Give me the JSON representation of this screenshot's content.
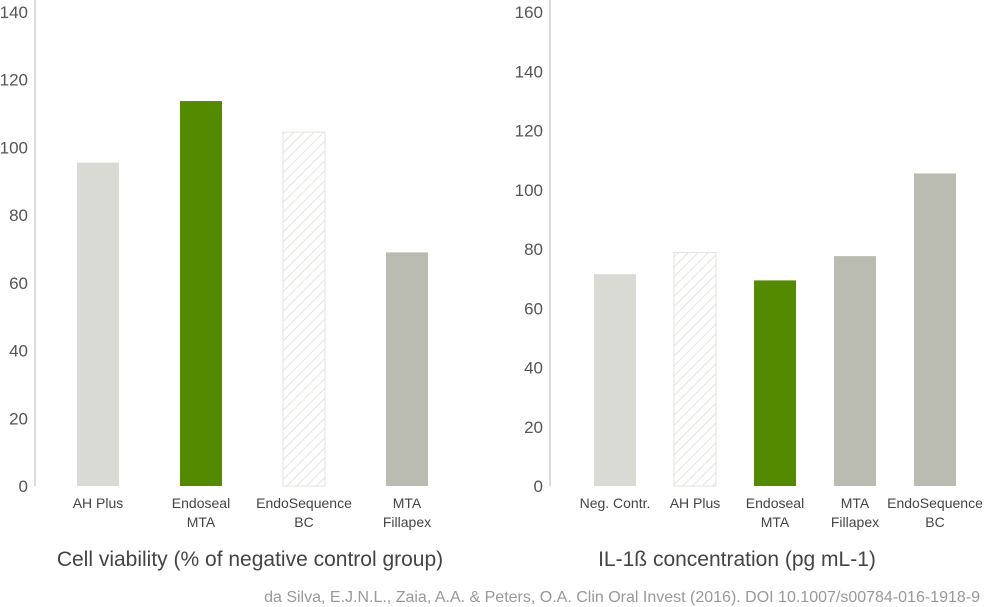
{
  "chart_data": [
    {
      "type": "bar",
      "title": "Cell viability (% of negative control group)",
      "categories": [
        [
          "AH Plus"
        ],
        [
          "Endoseal",
          "MTA"
        ],
        [
          "EndoSequence",
          "BC"
        ],
        [
          "MTA",
          "Fillapex"
        ]
      ],
      "values": [
        95.5,
        113.7,
        104.5,
        69
      ],
      "styles": [
        "light",
        "green",
        "hatched",
        "gray"
      ],
      "ylim": [
        0,
        140
      ],
      "yticks": [
        0,
        20,
        40,
        60,
        80,
        100,
        120,
        140
      ],
      "xlabel": "",
      "ylabel": "",
      "grid": false
    },
    {
      "type": "bar",
      "title": "IL-1ß concentration (pg mL-1)",
      "categories": [
        [
          "Neg. Contr."
        ],
        [
          "AH Plus"
        ],
        [
          "Endoseal",
          "MTA"
        ],
        [
          "MTA",
          "Fillapex"
        ],
        [
          "EndoSequence",
          "BC"
        ]
      ],
      "values": [
        71.5,
        78.8,
        69.4,
        77.6,
        105.5
      ],
      "styles": [
        "light",
        "hatched",
        "green",
        "gray",
        "gray"
      ],
      "ylim": [
        0,
        160
      ],
      "yticks": [
        0,
        20,
        40,
        60,
        80,
        100,
        120,
        140,
        160
      ],
      "xlabel": "",
      "ylabel": "",
      "grid": false
    }
  ],
  "colors": {
    "light": "#d9dad4",
    "green": "#548a00",
    "gray": "#babbb1",
    "hatch": "#d9dad4",
    "axis": "#cfcfca"
  },
  "citation": "da Silva, E.J.N.L., Zaia, A.A. & Peters, O.A. Clin Oral Invest (2016). DOI 10.1007/s00784-016-1918-9"
}
